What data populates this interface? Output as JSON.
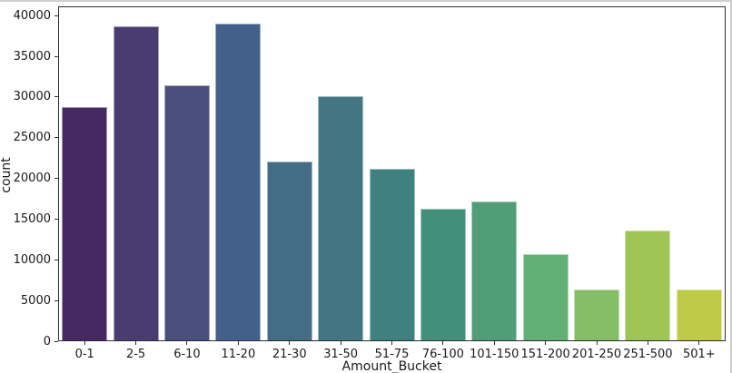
{
  "window": {
    "background": "#ffffff",
    "edge_border_color": "#cfcfcf"
  },
  "chart_data": {
    "type": "bar",
    "title": "",
    "xlabel": "Amount_Bucket",
    "ylabel": "count",
    "categories": [
      "0-1",
      "2-5",
      "6-10",
      "11-20",
      "21-30",
      "31-50",
      "51-75",
      "76-100",
      "101-150",
      "151-200",
      "201-250",
      "251-500",
      "501+"
    ],
    "values": [
      28700,
      38600,
      31300,
      38900,
      22000,
      30000,
      21100,
      16200,
      17100,
      10600,
      6300,
      13500,
      6300
    ],
    "bar_colors": [
      "#462962",
      "#4a3c71",
      "#4a4f80",
      "#42608a",
      "#446c84",
      "#437682",
      "#3f817f",
      "#42907b",
      "#519e76",
      "#63b077",
      "#84bd66",
      "#9fc457",
      "#bfca47"
    ],
    "yticks": [
      0,
      5000,
      10000,
      15000,
      20000,
      25000,
      30000,
      35000,
      40000
    ],
    "ytick_labels": [
      "0",
      "5000",
      "10000",
      "15000",
      "20000",
      "25000",
      "30000",
      "35000",
      "40000"
    ],
    "ylim": [
      0,
      41150
    ],
    "grid": false,
    "legend": false,
    "palette": "viridis-desaturated",
    "spine_color": "#2e2e2e",
    "text_color": "#1a1a1a",
    "plot_background": "#ffffff"
  }
}
